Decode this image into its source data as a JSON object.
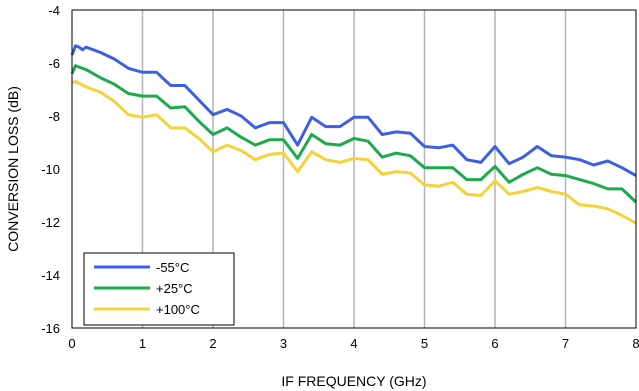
{
  "chart_data": {
    "type": "line",
    "title": "",
    "xlabel": "IF FREQUENCY (GHz)",
    "ylabel": "CONVERSION LOSS (dB)",
    "xlim": [
      0,
      8
    ],
    "ylim": [
      -16,
      -4
    ],
    "xticks": [
      0,
      1,
      2,
      3,
      4,
      5,
      6,
      7,
      8
    ],
    "yticks": [
      -4,
      -6,
      -8,
      -10,
      -12,
      -14,
      -16
    ],
    "grid": "vertical",
    "legend_position": "bottom-left",
    "series": [
      {
        "name": "-55°C",
        "color": "#3d5fe0",
        "points": [
          [
            0.0,
            -5.7
          ],
          [
            0.05,
            -5.35
          ],
          [
            0.1,
            -5.4
          ],
          [
            0.15,
            -5.5
          ],
          [
            0.2,
            -5.4
          ],
          [
            0.4,
            -5.6
          ],
          [
            0.6,
            -5.85
          ],
          [
            0.8,
            -6.2
          ],
          [
            1.0,
            -6.35
          ],
          [
            1.2,
            -6.35
          ],
          [
            1.4,
            -6.85
          ],
          [
            1.6,
            -6.85
          ],
          [
            1.8,
            -7.4
          ],
          [
            2.0,
            -7.95
          ],
          [
            2.2,
            -7.75
          ],
          [
            2.4,
            -8.0
          ],
          [
            2.6,
            -8.45
          ],
          [
            2.8,
            -8.25
          ],
          [
            3.0,
            -8.25
          ],
          [
            3.2,
            -9.1
          ],
          [
            3.4,
            -8.05
          ],
          [
            3.6,
            -8.4
          ],
          [
            3.8,
            -8.4
          ],
          [
            4.0,
            -8.05
          ],
          [
            4.2,
            -8.05
          ],
          [
            4.4,
            -8.7
          ],
          [
            4.6,
            -8.6
          ],
          [
            4.8,
            -8.65
          ],
          [
            5.0,
            -9.15
          ],
          [
            5.2,
            -9.2
          ],
          [
            5.4,
            -9.1
          ],
          [
            5.6,
            -9.65
          ],
          [
            5.8,
            -9.75
          ],
          [
            6.0,
            -9.15
          ],
          [
            6.2,
            -9.8
          ],
          [
            6.4,
            -9.55
          ],
          [
            6.6,
            -9.15
          ],
          [
            6.8,
            -9.5
          ],
          [
            7.0,
            -9.55
          ],
          [
            7.2,
            -9.65
          ],
          [
            7.4,
            -9.85
          ],
          [
            7.6,
            -9.7
          ],
          [
            7.8,
            -9.95
          ],
          [
            8.0,
            -10.25
          ]
        ]
      },
      {
        "name": "+25°C",
        "color": "#1eaa4a",
        "points": [
          [
            0.0,
            -6.4
          ],
          [
            0.05,
            -6.1
          ],
          [
            0.1,
            -6.15
          ],
          [
            0.2,
            -6.25
          ],
          [
            0.4,
            -6.55
          ],
          [
            0.6,
            -6.8
          ],
          [
            0.8,
            -7.15
          ],
          [
            1.0,
            -7.25
          ],
          [
            1.2,
            -7.25
          ],
          [
            1.4,
            -7.7
          ],
          [
            1.6,
            -7.65
          ],
          [
            1.8,
            -8.2
          ],
          [
            2.0,
            -8.7
          ],
          [
            2.2,
            -8.45
          ],
          [
            2.4,
            -8.8
          ],
          [
            2.6,
            -9.1
          ],
          [
            2.8,
            -8.9
          ],
          [
            3.0,
            -8.9
          ],
          [
            3.2,
            -9.6
          ],
          [
            3.4,
            -8.7
          ],
          [
            3.6,
            -9.05
          ],
          [
            3.8,
            -9.1
          ],
          [
            4.0,
            -8.85
          ],
          [
            4.2,
            -8.95
          ],
          [
            4.4,
            -9.55
          ],
          [
            4.6,
            -9.4
          ],
          [
            4.8,
            -9.5
          ],
          [
            5.0,
            -9.95
          ],
          [
            5.2,
            -9.95
          ],
          [
            5.4,
            -9.95
          ],
          [
            5.6,
            -10.4
          ],
          [
            5.8,
            -10.4
          ],
          [
            6.0,
            -9.9
          ],
          [
            6.2,
            -10.5
          ],
          [
            6.4,
            -10.2
          ],
          [
            6.6,
            -9.95
          ],
          [
            6.8,
            -10.2
          ],
          [
            7.0,
            -10.25
          ],
          [
            7.2,
            -10.4
          ],
          [
            7.4,
            -10.55
          ],
          [
            7.6,
            -10.75
          ],
          [
            7.8,
            -10.75
          ],
          [
            8.0,
            -11.25
          ]
        ]
      },
      {
        "name": "+100°C",
        "color": "#f2d43a",
        "points": [
          [
            0.0,
            -6.75
          ],
          [
            0.05,
            -6.7
          ],
          [
            0.2,
            -6.9
          ],
          [
            0.4,
            -7.1
          ],
          [
            0.6,
            -7.45
          ],
          [
            0.8,
            -7.95
          ],
          [
            1.0,
            -8.05
          ],
          [
            1.2,
            -7.95
          ],
          [
            1.4,
            -8.45
          ],
          [
            1.6,
            -8.45
          ],
          [
            1.8,
            -8.85
          ],
          [
            2.0,
            -9.35
          ],
          [
            2.2,
            -9.1
          ],
          [
            2.4,
            -9.3
          ],
          [
            2.6,
            -9.65
          ],
          [
            2.8,
            -9.45
          ],
          [
            3.0,
            -9.4
          ],
          [
            3.2,
            -10.1
          ],
          [
            3.4,
            -9.35
          ],
          [
            3.6,
            -9.65
          ],
          [
            3.8,
            -9.75
          ],
          [
            4.0,
            -9.6
          ],
          [
            4.2,
            -9.65
          ],
          [
            4.4,
            -10.2
          ],
          [
            4.6,
            -10.1
          ],
          [
            4.8,
            -10.15
          ],
          [
            5.0,
            -10.6
          ],
          [
            5.2,
            -10.65
          ],
          [
            5.4,
            -10.5
          ],
          [
            5.6,
            -10.95
          ],
          [
            5.8,
            -11.0
          ],
          [
            6.0,
            -10.45
          ],
          [
            6.2,
            -10.95
          ],
          [
            6.4,
            -10.85
          ],
          [
            6.6,
            -10.7
          ],
          [
            6.8,
            -10.85
          ],
          [
            7.0,
            -10.95
          ],
          [
            7.2,
            -11.35
          ],
          [
            7.4,
            -11.4
          ],
          [
            7.6,
            -11.5
          ],
          [
            7.8,
            -11.75
          ],
          [
            8.0,
            -12.05
          ]
        ]
      }
    ]
  }
}
